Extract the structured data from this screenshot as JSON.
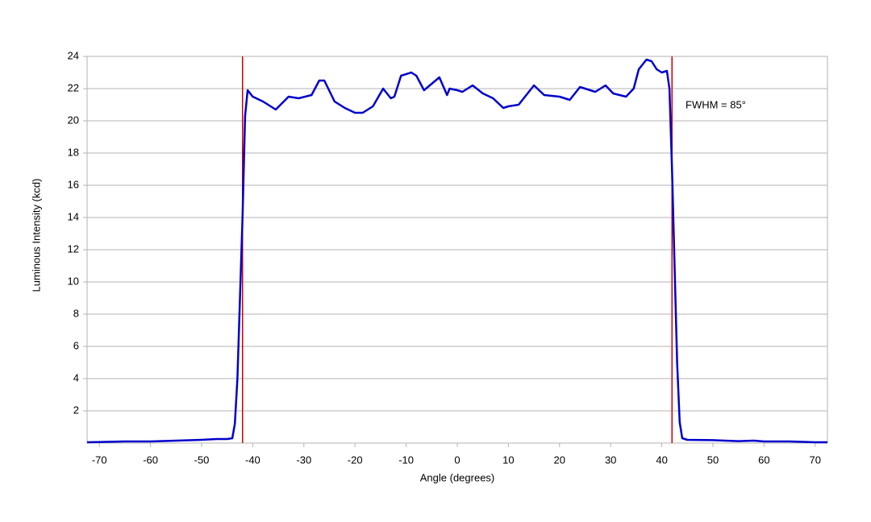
{
  "chart_data": {
    "type": "line",
    "x_label": "Angle (degrees)",
    "y_label": "Luminous Intensity (kcd)",
    "annotation": "FWHM = 85°",
    "x": [
      -72.4,
      -65,
      -60,
      -55,
      -50,
      -47,
      -45,
      -44,
      -43.5,
      -43,
      -42.5,
      -42,
      -41.5,
      -41,
      -40,
      -38,
      -37,
      -35.5,
      -33,
      -31,
      -28.5,
      -27,
      -26,
      -24,
      -22,
      -20,
      -18.5,
      -16.5,
      -14.5,
      -13,
      -12.3,
      -11,
      -9,
      -8,
      -6.5,
      -3.5,
      -2,
      -1.5,
      0,
      1,
      3,
      5,
      7,
      9,
      10,
      12,
      13.5,
      15,
      17,
      20,
      22,
      24,
      27,
      29,
      30.5,
      33,
      34.5,
      35.5,
      37,
      38,
      39,
      40,
      41,
      41.5,
      42,
      42.5,
      43,
      43.5,
      44,
      45,
      50,
      55,
      58,
      60,
      65,
      70,
      72.4
    ],
    "series": [
      {
        "color": "#0000cc",
        "values": [
          0.05,
          0.1,
          0.1,
          0.15,
          0.2,
          0.25,
          0.25,
          0.3,
          1.2,
          4,
          9,
          14,
          20.3,
          21.9,
          21.5,
          21.2,
          21.0,
          20.7,
          21.5,
          21.4,
          21.6,
          22.5,
          22.5,
          21.2,
          20.8,
          20.5,
          20.5,
          20.9,
          22.0,
          21.4,
          21.5,
          22.8,
          23.0,
          22.8,
          21.9,
          22.7,
          21.6,
          22.0,
          21.9,
          21.8,
          22.2,
          21.7,
          21.4,
          20.8,
          20.9,
          21.0,
          21.6,
          22.2,
          21.6,
          21.5,
          21.3,
          22.1,
          21.8,
          22.2,
          21.7,
          21.5,
          22.0,
          23.2,
          23.8,
          23.7,
          23.2,
          23.0,
          23.1,
          22.0,
          17,
          11,
          5,
          1.3,
          0.3,
          0.2,
          0.18,
          0.12,
          0.15,
          0.1,
          0.1,
          0.05,
          0.05
        ]
      }
    ],
    "vlines": {
      "color": "#cc0000",
      "x": [
        -42,
        42
      ]
    },
    "xlim": [
      -72.4,
      72.4
    ],
    "xticks": [
      -70,
      -60,
      -50,
      -40,
      -30,
      -20,
      -10,
      0,
      10,
      20,
      30,
      40,
      50,
      60,
      70
    ],
    "ylim": [
      0,
      24
    ],
    "yticks": [
      2,
      4,
      6,
      8,
      10,
      12,
      14,
      16,
      18,
      20,
      22,
      24
    ],
    "grid": true
  }
}
